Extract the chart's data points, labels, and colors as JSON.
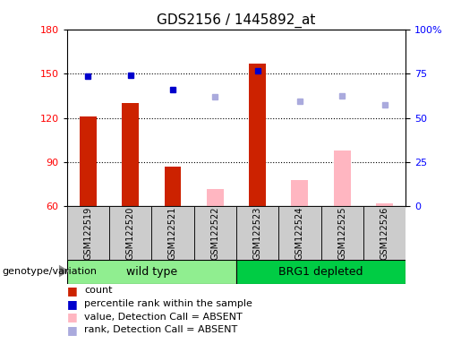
{
  "title": "GDS2156 / 1445892_at",
  "samples": [
    "GSM122519",
    "GSM122520",
    "GSM122521",
    "GSM122522",
    "GSM122523",
    "GSM122524",
    "GSM122525",
    "GSM122526"
  ],
  "bar_values": [
    121,
    130,
    87,
    null,
    157,
    null,
    null,
    null
  ],
  "bar_absent_values": [
    null,
    null,
    null,
    72,
    null,
    78,
    98,
    62
  ],
  "dot_values": [
    148,
    149,
    139,
    null,
    152,
    null,
    null,
    null
  ],
  "dot_absent_values": [
    null,
    null,
    null,
    134,
    null,
    131,
    135,
    129
  ],
  "ylim": [
    60,
    180
  ],
  "yticks_left": [
    60,
    90,
    120,
    150,
    180
  ],
  "yticks_right_values": [
    "0",
    "25",
    "50",
    "75",
    "100%"
  ],
  "yticks_right_positions": [
    60,
    90,
    120,
    150,
    180
  ],
  "bar_color_present": "#CC2200",
  "bar_color_absent": "#FFB6C1",
  "dot_color_present": "#0000CC",
  "dot_color_absent": "#AAAADD",
  "legend_items": [
    {
      "label": "count",
      "color": "#CC2200"
    },
    {
      "label": "percentile rank within the sample",
      "color": "#0000CC"
    },
    {
      "label": "value, Detection Call = ABSENT",
      "color": "#FFB6C1"
    },
    {
      "label": "rank, Detection Call = ABSENT",
      "color": "#AAAADD"
    }
  ],
  "xlabel_genotype": "genotype/variation",
  "wt_color": "#90EE90",
  "brg_color": "#00CC44",
  "title_fontsize": 11,
  "axis_fontsize": 8,
  "sample_fontsize": 7,
  "legend_fontsize": 8
}
